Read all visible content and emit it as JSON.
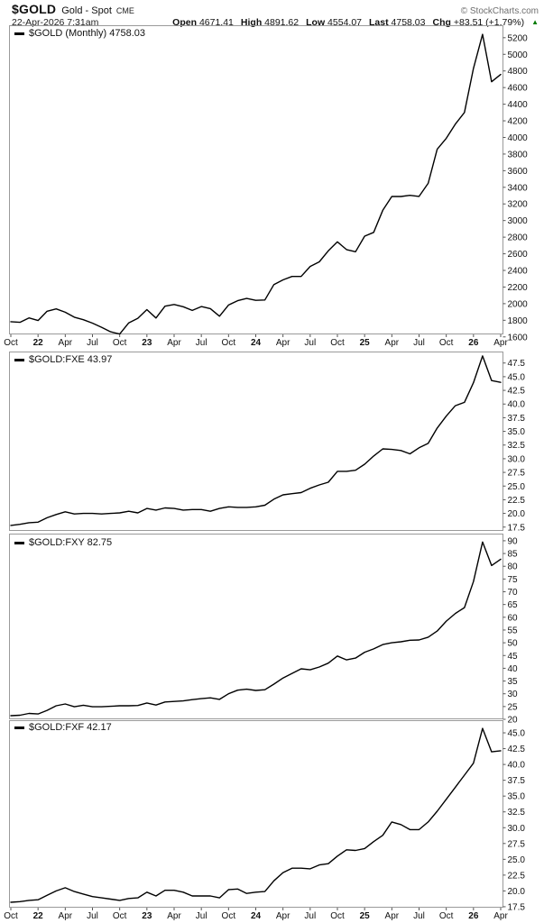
{
  "header": {
    "symbol": "$GOLD",
    "title": "Gold - Spot",
    "exchange": "CME",
    "copyright": "© StockCharts.com",
    "timestamp": "22-Apr-2026 7:31am",
    "quote": [
      {
        "label": "Open",
        "value": "4671.41"
      },
      {
        "label": "High",
        "value": "4891.62"
      },
      {
        "label": "Low",
        "value": "4554.07"
      },
      {
        "label": "Last",
        "value": "4758.03"
      },
      {
        "label": "Chg",
        "value": "+83.51 (+1.79%)"
      }
    ],
    "change_direction": "up",
    "up_arrow": "▲",
    "arrow_color": "#007a00"
  },
  "x_axis": {
    "labels": [
      {
        "t": "Oct",
        "m": 0,
        "b": false
      },
      {
        "t": "22",
        "m": 3,
        "b": true
      },
      {
        "t": "Apr",
        "m": 6,
        "b": false
      },
      {
        "t": "Jul",
        "m": 9,
        "b": false
      },
      {
        "t": "Oct",
        "m": 12,
        "b": false
      },
      {
        "t": "23",
        "m": 15,
        "b": true
      },
      {
        "t": "Apr",
        "m": 18,
        "b": false
      },
      {
        "t": "Jul",
        "m": 21,
        "b": false
      },
      {
        "t": "Oct",
        "m": 24,
        "b": false
      },
      {
        "t": "24",
        "m": 27,
        "b": true
      },
      {
        "t": "Apr",
        "m": 30,
        "b": false
      },
      {
        "t": "Jul",
        "m": 33,
        "b": false
      },
      {
        "t": "Oct",
        "m": 36,
        "b": false
      },
      {
        "t": "25",
        "m": 39,
        "b": true
      },
      {
        "t": "Apr",
        "m": 42,
        "b": false
      },
      {
        "t": "Jul",
        "m": 45,
        "b": false
      },
      {
        "t": "Oct",
        "m": 48,
        "b": false
      },
      {
        "t": "26",
        "m": 51,
        "b": true
      },
      {
        "t": "Apr",
        "m": 54,
        "b": false
      }
    ]
  },
  "chart_data": [
    {
      "type": "line",
      "legend": "$GOLD (Monthly) 4758.03",
      "line_color": "#000000",
      "ylim": [
        1630,
        5350
      ],
      "tick_decimals": 0,
      "yticks": [
        5200,
        5000,
        4800,
        4600,
        4400,
        4200,
        4000,
        3800,
        3600,
        3400,
        3200,
        3000,
        2800,
        2600,
        2400,
        2200,
        2000,
        1800,
        1600
      ],
      "values": [
        1783,
        1775,
        1829,
        1797,
        1909,
        1937,
        1897,
        1837,
        1807,
        1766,
        1716,
        1661,
        1634,
        1769,
        1824,
        1928,
        1827,
        1969,
        1990,
        1963,
        1919,
        1965,
        1940,
        1849,
        1984,
        2036,
        2063,
        2040,
        2044,
        2230,
        2286,
        2327,
        2327,
        2448,
        2503,
        2635,
        2744,
        2651,
        2625,
        2812,
        2858,
        3123,
        3289,
        3289,
        3303,
        3290,
        3448,
        3858,
        3990,
        4160,
        4300,
        4830,
        5240,
        4670,
        4758
      ]
    },
    {
      "type": "line",
      "legend": "$GOLD:FXE 43.97",
      "line_color": "#000000",
      "ylim": [
        16.8,
        49.6
      ],
      "tick_decimals": 1,
      "yticks": [
        47.5,
        45.0,
        42.5,
        40.0,
        37.5,
        35.0,
        32.5,
        30.0,
        27.5,
        25.0,
        22.5,
        20.0,
        17.5
      ],
      "values": [
        17.8,
        18.0,
        18.3,
        18.4,
        19.2,
        19.8,
        20.3,
        19.9,
        20.0,
        20.0,
        19.9,
        20.0,
        20.1,
        20.4,
        20.1,
        20.9,
        20.6,
        21.0,
        20.9,
        20.6,
        20.7,
        20.7,
        20.4,
        20.9,
        21.2,
        21.1,
        21.1,
        21.2,
        21.5,
        22.6,
        23.4,
        23.6,
        23.8,
        24.6,
        25.2,
        25.7,
        27.7,
        27.7,
        27.9,
        29.0,
        30.5,
        31.8,
        31.7,
        31.5,
        30.9,
        32.0,
        32.8,
        35.6,
        37.8,
        39.7,
        40.3,
        43.9,
        48.8,
        44.3,
        43.97
      ]
    },
    {
      "type": "line",
      "legend": "$GOLD:FXY 82.75",
      "line_color": "#000000",
      "ylim": [
        20,
        92.8
      ],
      "tick_decimals": 0,
      "yticks": [
        90,
        85,
        80,
        75,
        70,
        65,
        60,
        55,
        50,
        45,
        40,
        35,
        30,
        25,
        20
      ],
      "values": [
        21.4,
        21.6,
        22.3,
        22.1,
        23.5,
        25.3,
        26.0,
        24.9,
        25.5,
        24.9,
        24.9,
        25.1,
        25.3,
        25.3,
        25.4,
        26.4,
        25.6,
        26.8,
        27.0,
        27.2,
        27.7,
        28.1,
        28.4,
        27.8,
        30.0,
        31.4,
        31.8,
        31.3,
        31.6,
        33.8,
        36.2,
        38.0,
        39.8,
        39.4,
        40.5,
        42.0,
        44.8,
        43.3,
        44.0,
        46.3,
        47.6,
        49.3,
        50.0,
        50.4,
        51.0,
        51.1,
        52.2,
        54.6,
        58.5,
        61.5,
        63.8,
        74.0,
        89.5,
        80.3,
        82.75
      ]
    },
    {
      "type": "line",
      "legend": "$GOLD:FXF 42.17",
      "line_color": "#000000",
      "ylim": [
        17.35,
        47.0
      ],
      "tick_decimals": 1,
      "yticks": [
        45.0,
        42.5,
        40.0,
        37.5,
        35.0,
        32.5,
        30.0,
        27.5,
        25.0,
        22.5,
        20.0,
        17.5
      ],
      "values": [
        18.2,
        18.3,
        18.5,
        18.6,
        19.3,
        20.0,
        20.5,
        19.9,
        19.5,
        19.1,
        18.9,
        18.7,
        18.5,
        18.8,
        18.9,
        19.8,
        19.2,
        20.1,
        20.1,
        19.8,
        19.2,
        19.2,
        19.2,
        18.9,
        20.2,
        20.3,
        19.6,
        19.8,
        19.9,
        21.6,
        22.9,
        23.6,
        23.6,
        23.5,
        24.1,
        24.3,
        25.5,
        26.5,
        26.4,
        26.7,
        27.8,
        28.8,
        30.9,
        30.5,
        29.7,
        29.7,
        30.9,
        32.6,
        34.5,
        36.4,
        38.3,
        40.2,
        45.7,
        42.0,
        42.17
      ]
    }
  ]
}
